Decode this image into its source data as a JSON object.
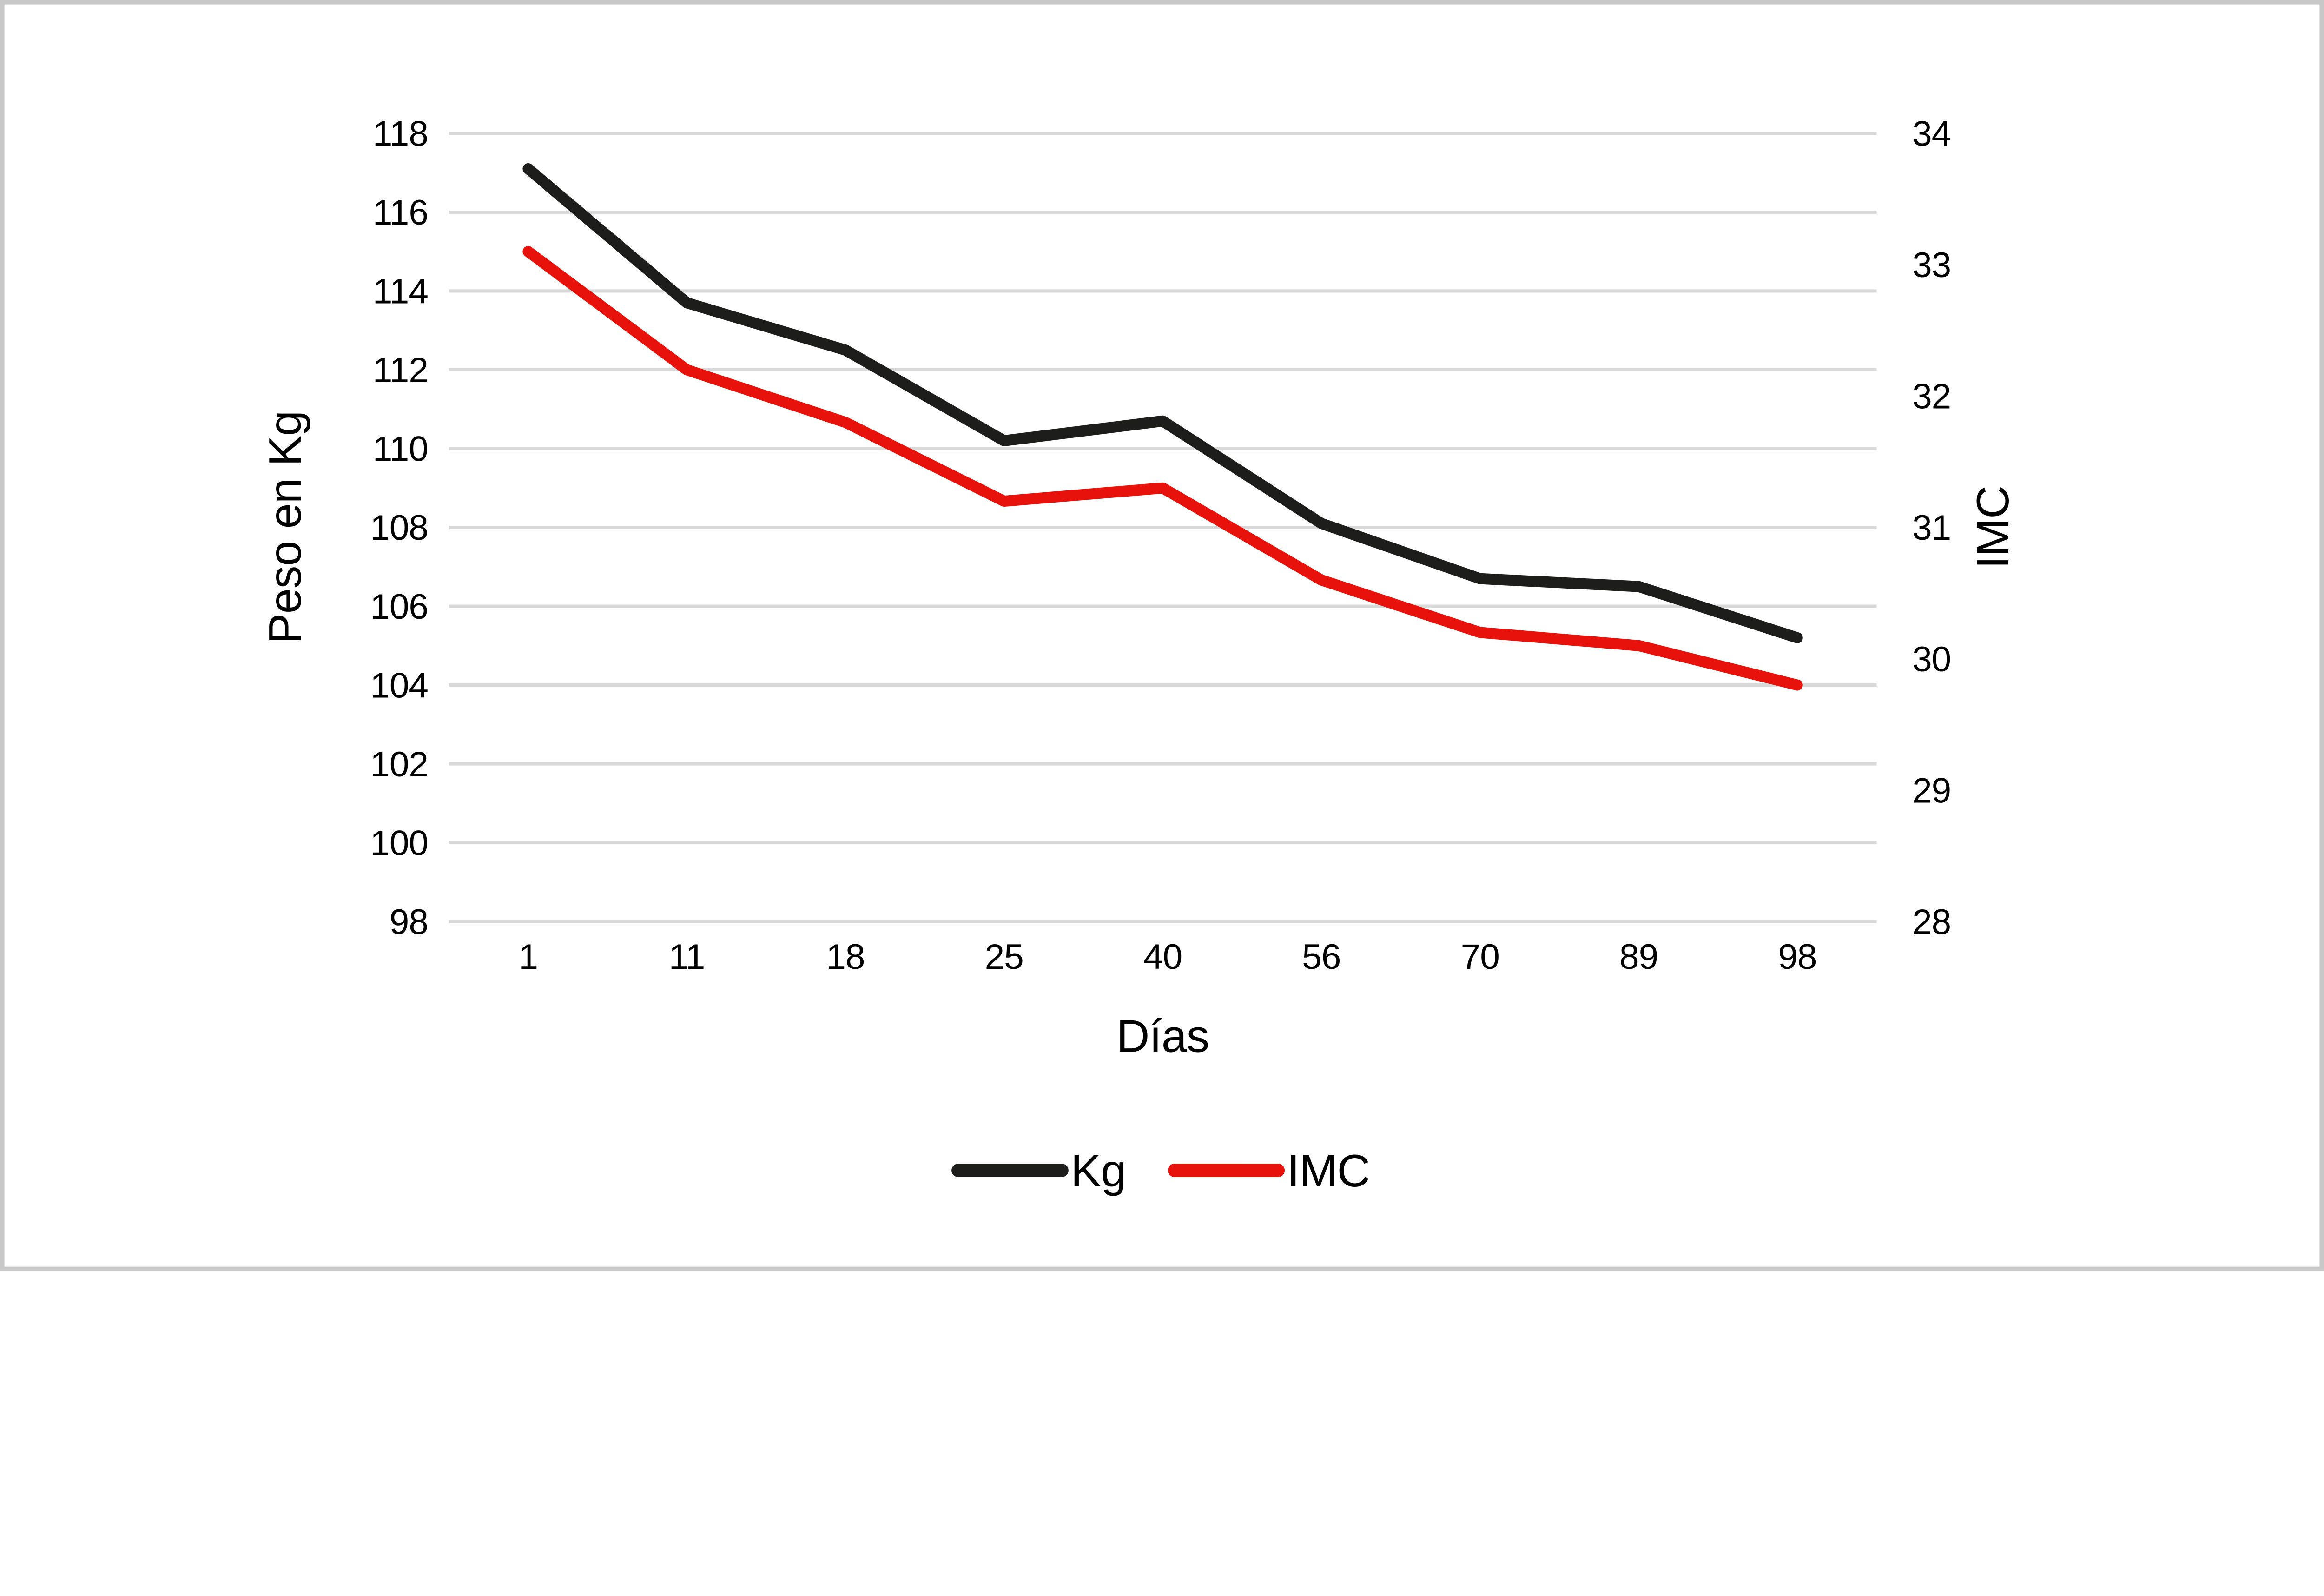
{
  "chart_data": {
    "type": "line",
    "title": "",
    "xlabel": "Días",
    "x_categories": [
      "1",
      "11",
      "18",
      "25",
      "40",
      "56",
      "70",
      "89",
      "98"
    ],
    "left_axis": {
      "label": "Peso en Kg",
      "min": 98,
      "max": 118,
      "tick_step": 2,
      "tick_labels": [
        "118",
        "116",
        "114",
        "112",
        "110",
        "108",
        "106",
        "104",
        "102",
        "100",
        "98"
      ]
    },
    "right_axis": {
      "label": "IMC",
      "min": 28,
      "max": 34,
      "tick_step": 1,
      "tick_labels": [
        "34",
        "33",
        "32",
        "31",
        "30",
        "29",
        "28"
      ]
    },
    "series": [
      {
        "name": "Kg",
        "axis": "left",
        "color": "#1d1d1b",
        "values": [
          117.1,
          113.7,
          112.5,
          110.2,
          110.7,
          108.1,
          106.7,
          106.5,
          105.2
        ]
      },
      {
        "name": "IMC",
        "axis": "right",
        "color": "#e8120c",
        "values": [
          33.1,
          32.2,
          31.8,
          31.2,
          31.3,
          30.6,
          30.2,
          30.1,
          29.8
        ]
      }
    ],
    "grid": "horizontal",
    "legend_position": "bottom",
    "legend_labels": [
      "Kg",
      "IMC"
    ]
  },
  "styles": {
    "background": "#ffffff",
    "border_color": "#c8c8c8",
    "grid_color": "#d9d9d9",
    "text_color": "#000000",
    "kg_line_color": "#1d1d1b",
    "imc_line_color": "#e8120c"
  }
}
